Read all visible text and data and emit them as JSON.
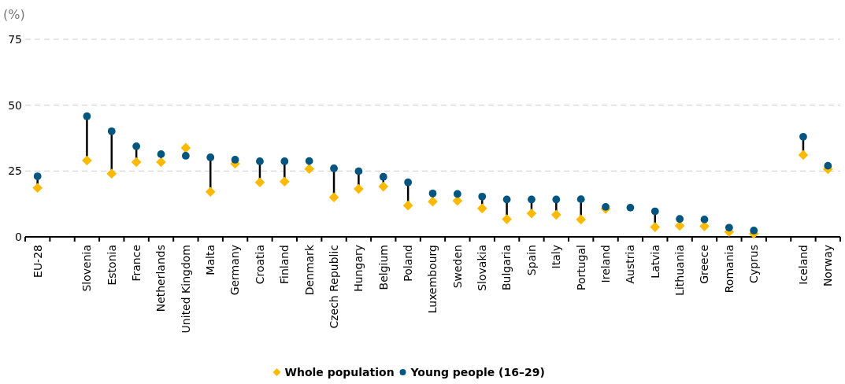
{
  "chart_data": {
    "type": "scatter",
    "ylabel": "(%)",
    "categories": [
      "EU-28",
      null,
      "Slovenia",
      "Estonia",
      "France",
      "Netherlands",
      "United Kingdom",
      "Malta",
      "Germany",
      "Croatia",
      "Finland",
      "Denmark",
      "Czech Republic",
      "Hungary",
      "Belgium",
      "Poland",
      "Luxembourg",
      "Sweden",
      "Slovakia",
      "Bulgaria",
      "Spain",
      "Italy",
      "Portugal",
      "Ireland",
      "Austria",
      "Latvia",
      "Lithuania",
      "Greece",
      "Romania",
      "Cyprus",
      null,
      "Iceland",
      "Norway"
    ],
    "series": [
      {
        "name": "Whole population",
        "color": "#fbb900",
        "marker": "diamond",
        "values": [
          18.6,
          null,
          29.0,
          24.0,
          28.4,
          28.4,
          33.8,
          17.1,
          27.8,
          20.7,
          21.0,
          25.8,
          15.0,
          18.2,
          19.1,
          11.9,
          13.4,
          13.7,
          10.8,
          6.7,
          8.9,
          8.4,
          6.6,
          10.6,
          null,
          3.7,
          4.2,
          4.0,
          1.9,
          1.2,
          null,
          31.1,
          25.7
        ]
      },
      {
        "name": "Young people (16–29)",
        "color": "#00567f",
        "marker": "circle",
        "values": [
          23.0,
          null,
          45.8,
          40.1,
          34.4,
          31.4,
          30.8,
          30.2,
          29.3,
          28.7,
          28.7,
          28.8,
          26.0,
          24.9,
          22.8,
          20.7,
          16.5,
          16.3,
          15.3,
          14.2,
          14.2,
          14.2,
          14.3,
          11.4,
          11.1,
          9.7,
          6.8,
          6.6,
          3.5,
          2.4,
          null,
          38.0,
          27.0
        ]
      }
    ],
    "ylim": [
      0,
      75
    ],
    "yticks": [
      0,
      25,
      50,
      75
    ],
    "grid": "y",
    "legend": "bottom"
  }
}
